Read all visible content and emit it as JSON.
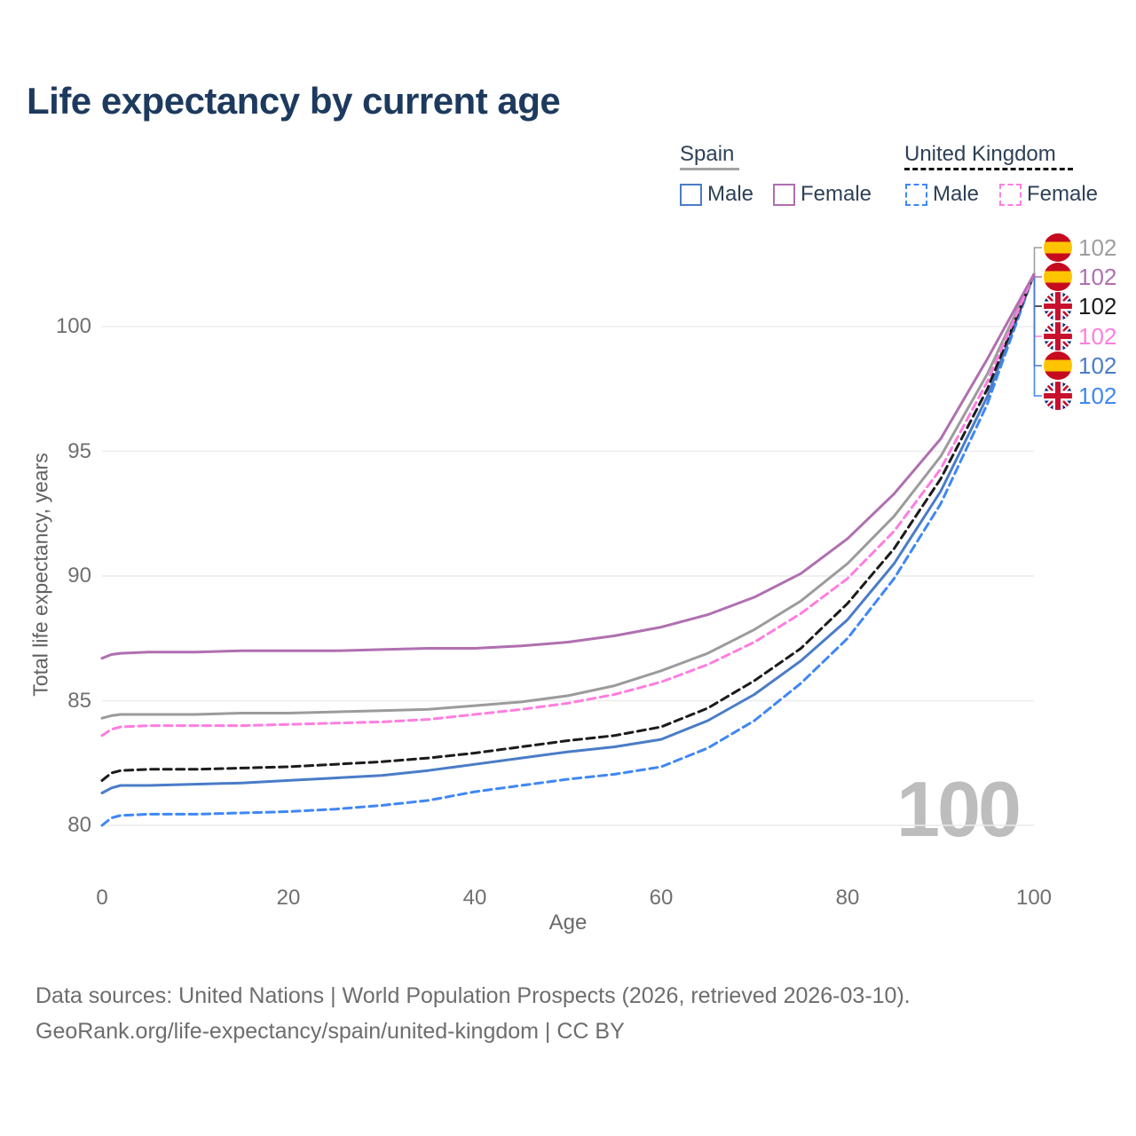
{
  "title": "Life expectancy by current age",
  "watermark": "100",
  "legend": {
    "groups": [
      {
        "label": "Spain",
        "underline_style": "solid",
        "underline_color": "#a3a3a3",
        "items": [
          {
            "label": "Male",
            "color": "#4a7cc7",
            "dashed": false
          },
          {
            "label": "Female",
            "color": "#b06fb0",
            "dashed": false
          }
        ]
      },
      {
        "label": "United Kingdom",
        "underline_style": "dashed",
        "underline_color": "#141414",
        "items": [
          {
            "label": "Male",
            "color": "#3f87f5",
            "dashed": true
          },
          {
            "label": "Female",
            "color": "#ff7de0",
            "dashed": true
          }
        ]
      }
    ]
  },
  "footer": {
    "line1": "Data sources: United Nations | World Population Prospects (2026, retrieved 2026-03-10).",
    "line2": "GeoRank.org/life-expectancy/spain/united-kingdom | CC BY"
  },
  "chart_data": {
    "type": "line",
    "title": "Life expectancy by current age",
    "xlabel": "Age",
    "ylabel": "Total life expectancy, years",
    "xlim": [
      0,
      100
    ],
    "ylim": [
      78.5,
      102.5
    ],
    "x_ticks": [
      0,
      20,
      40,
      60,
      80,
      100
    ],
    "y_ticks": [
      100,
      95,
      90,
      85,
      80
    ],
    "grid": "horizontal-only",
    "legend_position": "top-right",
    "series": [
      {
        "name": "Spain Total",
        "country": "spain",
        "sex": "total",
        "color": "#9b9b9b",
        "dashed": false,
        "points": [
          [
            0,
            84.3
          ],
          [
            1,
            84.4
          ],
          [
            2,
            84.45
          ],
          [
            5,
            84.45
          ],
          [
            10,
            84.45
          ],
          [
            15,
            84.5
          ],
          [
            20,
            84.5
          ],
          [
            25,
            84.55
          ],
          [
            30,
            84.6
          ],
          [
            35,
            84.65
          ],
          [
            40,
            84.8
          ],
          [
            45,
            84.95
          ],
          [
            50,
            85.2
          ],
          [
            55,
            85.6
          ],
          [
            60,
            86.2
          ],
          [
            65,
            86.9
          ],
          [
            70,
            87.85
          ],
          [
            75,
            89.0
          ],
          [
            80,
            90.5
          ],
          [
            85,
            92.4
          ],
          [
            90,
            94.8
          ],
          [
            95,
            98.1
          ],
          [
            100,
            102.1
          ]
        ]
      },
      {
        "name": "United Kingdom Male",
        "country": "uk",
        "sex": "male",
        "color": "#3f87f5",
        "dashed": true,
        "points": [
          [
            0,
            80.0
          ],
          [
            1,
            80.3
          ],
          [
            2,
            80.4
          ],
          [
            5,
            80.45
          ],
          [
            10,
            80.45
          ],
          [
            15,
            80.5
          ],
          [
            20,
            80.55
          ],
          [
            25,
            80.65
          ],
          [
            30,
            80.8
          ],
          [
            35,
            81.0
          ],
          [
            40,
            81.35
          ],
          [
            45,
            81.6
          ],
          [
            50,
            81.85
          ],
          [
            55,
            82.05
          ],
          [
            60,
            82.35
          ],
          [
            65,
            83.1
          ],
          [
            70,
            84.2
          ],
          [
            75,
            85.7
          ],
          [
            80,
            87.5
          ],
          [
            85,
            89.9
          ],
          [
            90,
            92.9
          ],
          [
            95,
            96.9
          ],
          [
            100,
            102.1
          ]
        ]
      },
      {
        "name": "Spain Male",
        "country": "spain",
        "sex": "male",
        "color": "#4a7cc7",
        "dashed": false,
        "points": [
          [
            0,
            81.3
          ],
          [
            1,
            81.5
          ],
          [
            2,
            81.6
          ],
          [
            5,
            81.6
          ],
          [
            10,
            81.65
          ],
          [
            15,
            81.7
          ],
          [
            20,
            81.8
          ],
          [
            25,
            81.9
          ],
          [
            30,
            82.0
          ],
          [
            35,
            82.2
          ],
          [
            40,
            82.45
          ],
          [
            45,
            82.7
          ],
          [
            50,
            82.95
          ],
          [
            55,
            83.15
          ],
          [
            60,
            83.45
          ],
          [
            65,
            84.2
          ],
          [
            70,
            85.25
          ],
          [
            75,
            86.6
          ],
          [
            80,
            88.25
          ],
          [
            85,
            90.5
          ],
          [
            90,
            93.4
          ],
          [
            95,
            97.2
          ],
          [
            100,
            102.1
          ]
        ]
      },
      {
        "name": "United Kingdom Total",
        "country": "uk",
        "sex": "total",
        "color": "#1b1b1b",
        "dashed": true,
        "points": [
          [
            0,
            81.8
          ],
          [
            1,
            82.1
          ],
          [
            2,
            82.2
          ],
          [
            5,
            82.25
          ],
          [
            10,
            82.25
          ],
          [
            15,
            82.3
          ],
          [
            20,
            82.35
          ],
          [
            25,
            82.45
          ],
          [
            30,
            82.55
          ],
          [
            35,
            82.7
          ],
          [
            40,
            82.9
          ],
          [
            45,
            83.15
          ],
          [
            50,
            83.4
          ],
          [
            55,
            83.6
          ],
          [
            60,
            83.95
          ],
          [
            65,
            84.7
          ],
          [
            70,
            85.8
          ],
          [
            75,
            87.1
          ],
          [
            80,
            88.9
          ],
          [
            85,
            91.1
          ],
          [
            90,
            93.9
          ],
          [
            95,
            97.5
          ],
          [
            100,
            102.1
          ]
        ]
      },
      {
        "name": "United Kingdom Female",
        "country": "uk",
        "sex": "female",
        "color": "#ff7de0",
        "dashed": true,
        "points": [
          [
            0,
            83.6
          ],
          [
            1,
            83.85
          ],
          [
            2,
            83.95
          ],
          [
            5,
            84.0
          ],
          [
            10,
            84.0
          ],
          [
            15,
            84.0
          ],
          [
            20,
            84.05
          ],
          [
            25,
            84.1
          ],
          [
            30,
            84.15
          ],
          [
            35,
            84.25
          ],
          [
            40,
            84.45
          ],
          [
            45,
            84.65
          ],
          [
            50,
            84.9
          ],
          [
            55,
            85.25
          ],
          [
            60,
            85.75
          ],
          [
            65,
            86.45
          ],
          [
            70,
            87.35
          ],
          [
            75,
            88.5
          ],
          [
            80,
            89.9
          ],
          [
            85,
            91.8
          ],
          [
            90,
            94.3
          ],
          [
            95,
            97.8
          ],
          [
            100,
            102.1
          ]
        ]
      },
      {
        "name": "Spain Female",
        "country": "spain",
        "sex": "female",
        "color": "#b06fb0",
        "dashed": false,
        "points": [
          [
            0,
            86.7
          ],
          [
            1,
            86.85
          ],
          [
            2,
            86.9
          ],
          [
            5,
            86.95
          ],
          [
            10,
            86.95
          ],
          [
            15,
            87.0
          ],
          [
            20,
            87.0
          ],
          [
            25,
            87.0
          ],
          [
            30,
            87.05
          ],
          [
            35,
            87.1
          ],
          [
            40,
            87.1
          ],
          [
            45,
            87.2
          ],
          [
            50,
            87.35
          ],
          [
            55,
            87.6
          ],
          [
            60,
            87.95
          ],
          [
            65,
            88.45
          ],
          [
            70,
            89.15
          ],
          [
            75,
            90.1
          ],
          [
            80,
            91.5
          ],
          [
            85,
            93.3
          ],
          [
            90,
            95.5
          ],
          [
            95,
            98.7
          ],
          [
            100,
            102.1
          ]
        ]
      }
    ],
    "end_labels": [
      {
        "flag": "spain",
        "text": "102",
        "color": "#9e9e9e",
        "series": "Spain Total"
      },
      {
        "flag": "spain",
        "text": "102",
        "color": "#b06fb0",
        "series": "Spain Female"
      },
      {
        "flag": "uk",
        "text": "102",
        "color": "#1b1b1b",
        "series": "United Kingdom Total"
      },
      {
        "flag": "uk",
        "text": "102",
        "color": "#ff7de0",
        "series": "United Kingdom Female"
      },
      {
        "flag": "spain",
        "text": "102",
        "color": "#4a7cc7",
        "series": "Spain Male"
      },
      {
        "flag": "uk",
        "text": "102",
        "color": "#3f87f5",
        "series": "United Kingdom Male"
      }
    ],
    "flag_colors": {
      "spain_red": "#c60b1e",
      "spain_yellow": "#ffc400",
      "uk_blue": "#012169",
      "uk_red": "#C8102E",
      "uk_white": "#ffffff"
    },
    "gridline_color": "#ececec"
  }
}
